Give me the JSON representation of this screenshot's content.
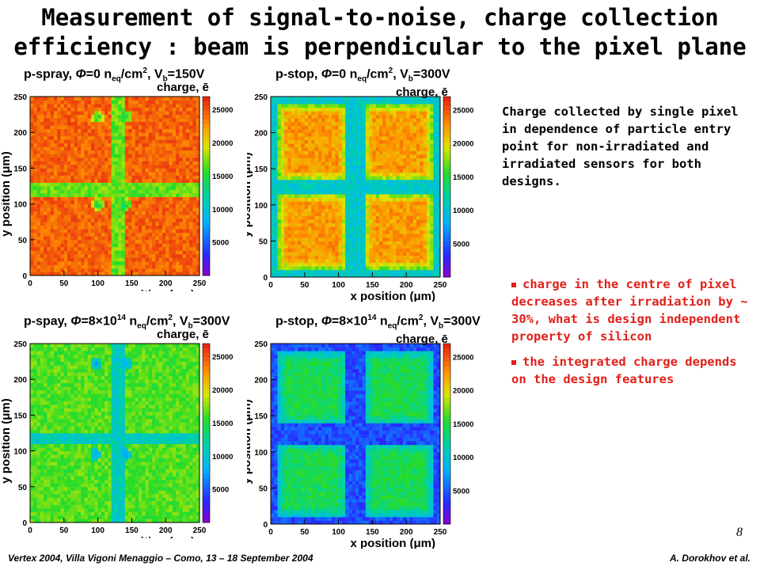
{
  "slide": {
    "title_line1": "Measurement of signal-to-noise, charge collection",
    "title_line2": "efficiency : beam is perpendicular to the pixel plane",
    "description": "Charge collected by single pixel in dependence of particle entry point for non-irradiated and irradiated sensors for both designs.",
    "bullets": [
      "charge in the centre of pixel decreases after irradiation by ~ 30%, what is design independent property of silicon",
      "the integrated charge depends on the design features"
    ],
    "page_number": "8",
    "footer_left": "Vertex 2004, Villa Vigoni Menaggio – Como, 13 – 18 September 2004",
    "footer_right": "A. Dorokhov et al."
  },
  "colors": {
    "bullet_text": "#e0201a",
    "title": "#000000"
  },
  "chart_data": [
    {
      "type": "heatmap",
      "design": "p-spray",
      "title": {
        "design": "p-spray",
        "fluence": "0",
        "bias": "150V"
      },
      "xlabel": "x position (μm)",
      "ylabel": "y position (μm)",
      "zlabel": "charge, ē",
      "xlim": [
        0,
        250
      ],
      "ylim": [
        0,
        250
      ],
      "zlim": [
        0,
        27000
      ],
      "x_ticks": [
        "0",
        "50",
        "100",
        "150",
        "200",
        "250"
      ],
      "y_ticks": [
        "0",
        "50",
        "100",
        "150",
        "200",
        "250"
      ],
      "z_ticks": [
        "5000",
        "10000",
        "15000",
        "20000",
        "25000"
      ],
      "pad_charge": 24500,
      "gap_charge": 17000,
      "spot_charge": 14000,
      "noise": 1500,
      "gaps_x": [
        [
          118,
          138
        ]
      ],
      "gaps_y": [
        [
          112,
          128
        ]
      ],
      "gaps_open_border": false,
      "spots": [
        [
          100,
          222
        ],
        [
          142,
          222
        ],
        [
          100,
          100
        ],
        [
          142,
          100
        ]
      ]
    },
    {
      "type": "heatmap",
      "design": "p-stop",
      "title": {
        "design": "p-stop",
        "fluence": "0",
        "bias": "300V"
      },
      "xlabel": "x position (μm)",
      "ylabel": "y position (μm)",
      "zlabel": "charge, ē",
      "xlim": [
        0,
        250
      ],
      "ylim": [
        0,
        250
      ],
      "zlim": [
        0,
        27000
      ],
      "x_ticks": [
        "0",
        "50",
        "100",
        "150",
        "200",
        "250"
      ],
      "y_ticks": [
        "0",
        "50",
        "100",
        "150",
        "200",
        "250"
      ],
      "z_ticks": [
        "5000",
        "10000",
        "15000",
        "20000",
        "25000"
      ],
      "pad_charge": 22500,
      "gap_charge": 10500,
      "spot_charge": null,
      "noise": 1500,
      "gaps_x": [
        [
          112,
          138
        ]
      ],
      "gaps_y": [
        [
          115,
          135
        ]
      ],
      "gaps_open_border": true,
      "spots": []
    },
    {
      "type": "heatmap",
      "design": "p-spay",
      "title": {
        "design": "p-spay",
        "fluence": "8×10",
        "fluence_exp": "14",
        "bias": "300V"
      },
      "xlabel": "x position (μm)",
      "ylabel": "y position (μm)",
      "zlabel": "charge, ē",
      "xlim": [
        0,
        250
      ],
      "ylim": [
        0,
        250
      ],
      "zlim": [
        0,
        27000
      ],
      "x_ticks": [
        "0",
        "50",
        "100",
        "150",
        "200",
        "250"
      ],
      "y_ticks": [
        "0",
        "50",
        "100",
        "150",
        "200",
        "250"
      ],
      "z_ticks": [
        "5000",
        "10000",
        "15000",
        "20000",
        "25000"
      ],
      "pad_charge": 16500,
      "gap_charge": 11000,
      "spot_charge": 7500,
      "noise": 1500,
      "gaps_x": [
        [
          118,
          138
        ]
      ],
      "gaps_y": [
        [
          110,
          125
        ]
      ],
      "gaps_open_border": false,
      "spots": [
        [
          97,
          222
        ],
        [
          142,
          222
        ],
        [
          97,
          95
        ],
        [
          142,
          95
        ]
      ]
    },
    {
      "type": "heatmap",
      "design": "p-stop",
      "title": {
        "design": "p-stop",
        "fluence": "8×10",
        "fluence_exp": "14",
        "bias": "300V"
      },
      "xlabel": "x position (μm)",
      "ylabel": "y position (μm)",
      "zlabel": "charge, ē",
      "xlim": [
        0,
        250
      ],
      "ylim": [
        0,
        250
      ],
      "zlim": [
        0,
        27000
      ],
      "x_ticks": [
        "0",
        "50",
        "100",
        "150",
        "200",
        "250"
      ],
      "y_ticks": [
        "0",
        "50",
        "100",
        "150",
        "200",
        "250"
      ],
      "z_ticks": [
        "5000",
        "10000",
        "15000",
        "20000",
        "25000"
      ],
      "pad_charge": 14500,
      "gap_charge": 4500,
      "spot_charge": null,
      "noise": 1500,
      "gaps_x": [
        [
          112,
          140
        ]
      ],
      "gaps_y": [
        [
          112,
          138
        ]
      ],
      "gaps_open_border": true,
      "spots": []
    }
  ]
}
